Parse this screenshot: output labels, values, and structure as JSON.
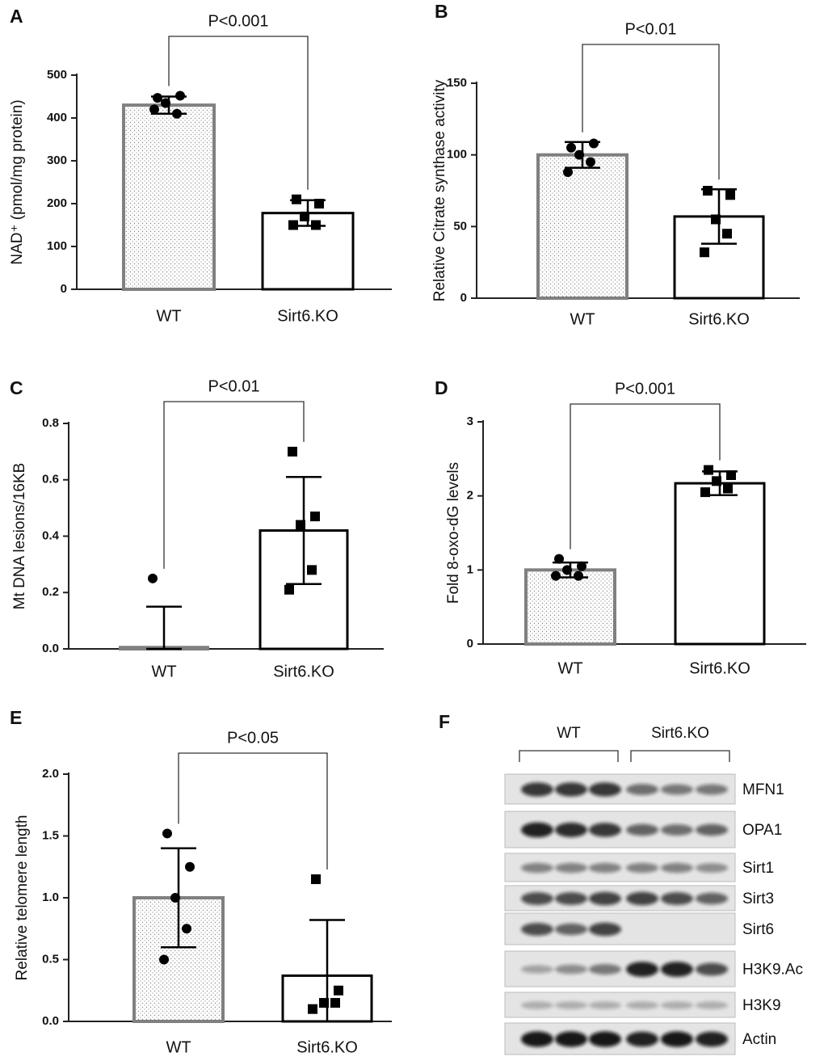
{
  "chart_data": [
    {
      "type": "bar",
      "panel": "A",
      "annotation": "P<0.001",
      "ylabel": "NAD⁺ (pmol/mg protein)",
      "categories": [
        "WT",
        "Sirt6.KO"
      ],
      "values": [
        430,
        178
      ],
      "errors": [
        20,
        30
      ],
      "points": [
        [
          447,
          452,
          435,
          410,
          420
        ],
        [
          210,
          200,
          170,
          150,
          150
        ]
      ],
      "colors": [
        "#808080",
        "#000000"
      ],
      "markers": [
        "circle",
        "square"
      ],
      "ylim": [
        0,
        500
      ],
      "yticks": [
        0,
        100,
        200,
        300,
        400,
        500
      ]
    },
    {
      "type": "bar",
      "panel": "B",
      "annotation": "P<0.01",
      "ylabel": "Relative Citrate synthase  activity",
      "categories": [
        "WT",
        "Sirt6.KO"
      ],
      "values": [
        100,
        57
      ],
      "errors": [
        9,
        19
      ],
      "points": [
        [
          105,
          108,
          100,
          95,
          88
        ],
        [
          75,
          72,
          55,
          45,
          32
        ]
      ],
      "colors": [
        "#808080",
        "#000000"
      ],
      "markers": [
        "circle",
        "square"
      ],
      "ylim": [
        0,
        150
      ],
      "yticks": [
        0,
        50,
        100,
        150
      ]
    },
    {
      "type": "bar",
      "panel": "C",
      "annotation": "P<0.01",
      "ylabel": "Mt DNA lesions/16KB",
      "categories": [
        "WT",
        "Sirt6.KO"
      ],
      "values": [
        0.005,
        0.42
      ],
      "errors": [
        0.145,
        0.19
      ],
      "points": [
        [
          0.25
        ],
        [
          0.7,
          0.47,
          0.44,
          0.28,
          0.21
        ]
      ],
      "colors": [
        "#808080",
        "#000000"
      ],
      "markers": [
        "circle",
        "square"
      ],
      "ylim": [
        0,
        0.8
      ],
      "yticks": [
        {
          "value": 0,
          "label": "0.0"
        },
        0.2,
        0.4,
        0.6,
        0.8
      ]
    },
    {
      "type": "bar",
      "panel": "D",
      "annotation": "P<0.001",
      "ylabel": "Fold 8-oxo-dG levels",
      "categories": [
        "WT",
        "Sirt6.KO"
      ],
      "values": [
        1.0,
        2.17
      ],
      "errors": [
        0.1,
        0.16
      ],
      "points": [
        [
          1.15,
          1.05,
          1.0,
          0.92,
          0.92
        ],
        [
          2.35,
          2.28,
          2.2,
          2.1,
          2.05
        ]
      ],
      "colors": [
        "#808080",
        "#000000"
      ],
      "markers": [
        "circle",
        "square"
      ],
      "ylim": [
        0,
        3
      ],
      "yticks": [
        0,
        1,
        2,
        3
      ]
    },
    {
      "type": "bar",
      "panel": "E",
      "annotation": "P<0.05",
      "ylabel": "Relative telomere length",
      "categories": [
        "WT",
        "Sirt6.KO"
      ],
      "values": [
        1.0,
        0.37
      ],
      "errors": [
        0.4,
        0.45
      ],
      "points": [
        [
          1.52,
          1.25,
          1.0,
          0.75,
          0.5
        ],
        [
          1.15,
          0.25,
          0.15,
          0.15,
          0.1
        ]
      ],
      "colors": [
        "#808080",
        "#000000"
      ],
      "markers": [
        "circle",
        "square"
      ],
      "ylim": [
        0,
        2
      ],
      "yticks": [
        {
          "value": 0,
          "label": "0.0"
        },
        0.5,
        {
          "value": 1,
          "label": "1.0"
        },
        1.5,
        {
          "value": 2,
          "label": "2.0"
        }
      ]
    }
  ],
  "blot": {
    "panel": "F",
    "groups": [
      "WT",
      "Sirt6.KO"
    ],
    "rows": [
      "MFN1",
      "OPA1",
      "Sirt1",
      "Sirt3",
      "Sirt6",
      "H3K9.Ac",
      "H3K9",
      "Actin"
    ]
  }
}
